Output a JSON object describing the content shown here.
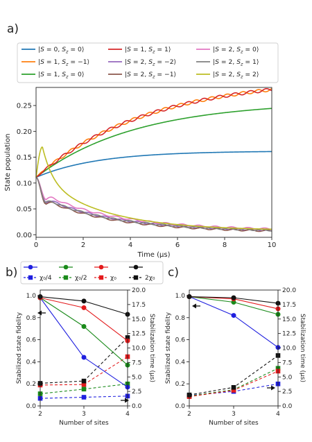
{
  "panel_labels": {
    "a": "a)",
    "b": "b)",
    "c": "c)"
  },
  "legend_b": {
    "entries": [
      {
        "label": "χ₀/4",
        "color": "#1f1fdf"
      },
      {
        "label": "χ₀/2",
        "color": "#1a8a1a"
      },
      {
        "label": "χ₀",
        "color": "#e31a1c"
      },
      {
        "label": "2χ₀",
        "color": "#111111"
      }
    ]
  },
  "chart_data": [
    {
      "id": "a",
      "type": "line",
      "xlabel": "Time (μs)",
      "ylabel": "State population",
      "xlim": [
        0,
        10
      ],
      "ylim": [
        -0.005,
        0.285
      ],
      "xticks": [
        0,
        2,
        4,
        6,
        8,
        10
      ],
      "yticks": [
        0.0,
        0.05,
        0.1,
        0.15,
        0.2,
        0.25
      ],
      "ytick_labels": [
        "0.00",
        "0.05",
        "0.10",
        "0.15",
        "0.20",
        "0.25"
      ],
      "legend_position": "top, outside, 3 columns",
      "grid": false,
      "series": [
        {
          "name": "|S = 0, S_z = 0⟩",
          "color": "#1f77b4",
          "model": {
            "kind": "sat",
            "start": 0.111,
            "end": 0.162,
            "tau": 2.6
          }
        },
        {
          "name": "|S = 1, S_z = −1⟩",
          "color": "#ff7f0e",
          "model": {
            "kind": "sat",
            "start": 0.111,
            "end": 0.305,
            "tau": 4.8,
            "wiggle": 0.003
          }
        },
        {
          "name": "|S = 1, S_z = 0⟩",
          "color": "#2ca02c",
          "model": {
            "kind": "sat",
            "start": 0.111,
            "end": 0.258,
            "tau": 4.2
          }
        },
        {
          "name": "|S = 1, S_z = 1⟩",
          "color": "#d62728",
          "model": {
            "kind": "sat",
            "start": 0.111,
            "end": 0.305,
            "tau": 4.8,
            "wiggle": -0.003
          }
        },
        {
          "name": "|S = 2, S_z = −2⟩",
          "color": "#9467bd",
          "model": {
            "kind": "dip",
            "dipT": 0.42,
            "dipV": 0.063,
            "bump": 0.071,
            "tail": 0.005,
            "tau": 3.5
          }
        },
        {
          "name": "|S = 2, S_z = −1⟩",
          "color": "#8c564b",
          "model": {
            "kind": "dip",
            "dipT": 0.4,
            "dipV": 0.06,
            "bump": 0.068,
            "tail": 0.004,
            "tau": 3.4
          }
        },
        {
          "name": "|S = 2, S_z = 0⟩",
          "color": "#e377c2",
          "model": {
            "kind": "dip",
            "dipT": 0.42,
            "dipV": 0.068,
            "bump": 0.078,
            "tail": 0.007,
            "tau": 3.6
          }
        },
        {
          "name": "|S = 2, S_z = 1⟩",
          "color": "#7f7f7f",
          "model": {
            "kind": "dip",
            "dipT": 0.41,
            "dipV": 0.062,
            "bump": 0.07,
            "tail": 0.005,
            "tau": 3.5
          }
        },
        {
          "name": "|S = 2, S_z = 2⟩",
          "color": "#bcbd22",
          "model": {
            "kind": "peak",
            "peakT": 0.27,
            "peakV": 0.17,
            "tail": 0.008,
            "tau": 2.7
          }
        }
      ]
    },
    {
      "id": "b",
      "type": "line",
      "xlabel": "Number of sites",
      "ylabel": "Stabilized state fidelity",
      "y2label": "Stabilization time (μs)",
      "x": [
        2,
        3,
        4
      ],
      "xticks": [
        2,
        3,
        4
      ],
      "ylim": [
        0.0,
        1.05
      ],
      "yticks": [
        0.0,
        0.2,
        0.4,
        0.6,
        0.8,
        1.0
      ],
      "ytick_labels": [
        "0.0",
        "0.2",
        "0.4",
        "0.6",
        "0.8",
        "1.0"
      ],
      "y2lim": [
        0.0,
        20.0
      ],
      "y2ticks": [
        0.0,
        2.5,
        5.0,
        7.5,
        10.0,
        12.5,
        15.0,
        17.5,
        20.0
      ],
      "y2tick_labels": [
        "0.0",
        "2.5",
        "5.0",
        "7.5",
        "10.0",
        "12.5",
        "15.0",
        "17.5",
        "20.0"
      ],
      "fidelity_series": [
        {
          "name": "χ₀/4",
          "color": "#1f1fdf",
          "values": [
            0.98,
            0.44,
            0.17
          ]
        },
        {
          "name": "χ₀/2",
          "color": "#1a8a1a",
          "values": [
            0.98,
            0.72,
            0.37
          ]
        },
        {
          "name": "χ₀",
          "color": "#e31a1c",
          "values": [
            0.98,
            0.89,
            0.59
          ]
        },
        {
          "name": "2χ₀",
          "color": "#111111",
          "values": [
            0.99,
            0.95,
            0.83
          ]
        }
      ],
      "time_series": [
        {
          "name": "χ₀/4",
          "color": "#1f1fdf",
          "values": [
            1.3,
            1.5,
            1.7
          ]
        },
        {
          "name": "χ₀/2",
          "color": "#1a8a1a",
          "values": [
            2.1,
            2.9,
            3.8
          ]
        },
        {
          "name": "χ₀",
          "color": "#e31a1c",
          "values": [
            3.6,
            3.7,
            8.5
          ]
        },
        {
          "name": "2χ₀",
          "color": "#111111",
          "values": [
            3.9,
            4.3,
            11.8
          ]
        }
      ]
    },
    {
      "id": "c",
      "type": "line",
      "xlabel": "Number of sites",
      "ylabel": "Stabilized state fidelity",
      "y2label": "Stabilization time (μs)",
      "x": [
        2,
        3,
        4
      ],
      "xticks": [
        2,
        3,
        4
      ],
      "ylim": [
        0.0,
        1.05
      ],
      "yticks": [
        0.0,
        0.2,
        0.4,
        0.6,
        0.8,
        1.0
      ],
      "ytick_labels": [
        "0.0",
        "0.2",
        "0.4",
        "0.6",
        "0.8",
        "1.0"
      ],
      "y2lim": [
        0.0,
        20.0
      ],
      "y2ticks": [
        0.0,
        2.5,
        5.0,
        7.5,
        10.0,
        12.5,
        15.0,
        17.5,
        20.0
      ],
      "y2tick_labels": [
        "0.0",
        "2.5",
        "5.0",
        "7.5",
        "10.0",
        "12.5",
        "15.0",
        "17.5",
        "20.0"
      ],
      "fidelity_series": [
        {
          "name": "χ₀/4",
          "color": "#1f1fdf",
          "values": [
            0.99,
            0.82,
            0.53
          ]
        },
        {
          "name": "χ₀/2",
          "color": "#1a8a1a",
          "values": [
            0.99,
            0.94,
            0.83
          ]
        },
        {
          "name": "χ₀",
          "color": "#e31a1c",
          "values": [
            0.99,
            0.97,
            0.88
          ]
        },
        {
          "name": "2χ₀",
          "color": "#111111",
          "values": [
            0.99,
            0.98,
            0.93
          ]
        }
      ],
      "time_series": [
        {
          "name": "χ₀/4",
          "color": "#1f1fdf",
          "values": [
            1.8,
            2.5,
            3.8
          ]
        },
        {
          "name": "χ₀/2",
          "color": "#1a8a1a",
          "values": [
            1.7,
            2.8,
            6.5
          ]
        },
        {
          "name": "χ₀",
          "color": "#e31a1c",
          "values": [
            1.6,
            2.7,
            6.0
          ]
        },
        {
          "name": "2χ₀",
          "color": "#111111",
          "values": [
            1.9,
            3.2,
            8.7
          ]
        }
      ]
    }
  ]
}
